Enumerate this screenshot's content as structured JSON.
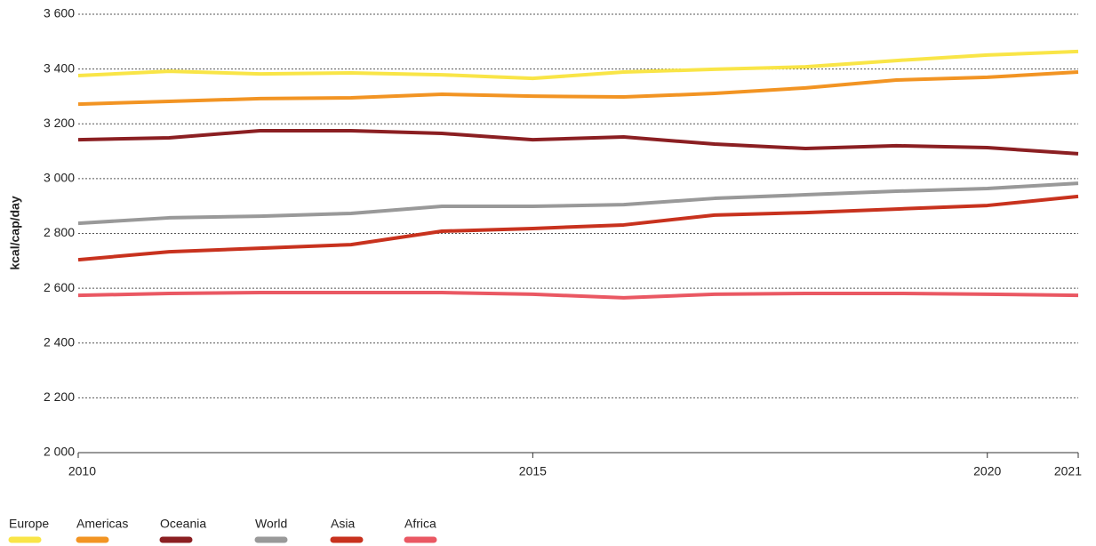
{
  "chart_data": {
    "type": "line",
    "y_label": "kcal/cap/day",
    "x": [
      2010,
      2011,
      2012,
      2013,
      2014,
      2015,
      2016,
      2017,
      2018,
      2019,
      2020,
      2021
    ],
    "xlim": [
      2010,
      2021
    ],
    "xticks": [
      2010,
      2015,
      2020,
      2021
    ],
    "ylim": [
      2000,
      3600
    ],
    "yticks": [
      {
        "value": 2000,
        "label": "2 000"
      },
      {
        "value": 2200,
        "label": "2 200"
      },
      {
        "value": 2400,
        "label": "2 400"
      },
      {
        "value": 2600,
        "label": "2 600"
      },
      {
        "value": 2800,
        "label": "2 800"
      },
      {
        "value": 3000,
        "label": "3 000"
      },
      {
        "value": 3200,
        "label": "3 200"
      },
      {
        "value": 3400,
        "label": "3 400"
      },
      {
        "value": 3600,
        "label": "3 600"
      }
    ],
    "grid": true,
    "legend": "bottom-left",
    "series": [
      {
        "name": "Europe",
        "color": "#f9e547",
        "values": [
          3376,
          3392,
          3382,
          3386,
          3379,
          3366,
          3389,
          3399,
          3408,
          3431,
          3451,
          3464
        ]
      },
      {
        "name": "Americas",
        "color": "#f29423",
        "values": [
          3272,
          3282,
          3292,
          3295,
          3308,
          3301,
          3298,
          3311,
          3331,
          3360,
          3370,
          3389
        ]
      },
      {
        "name": "Oceania",
        "color": "#8b1f22",
        "values": [
          3142,
          3149,
          3175,
          3175,
          3165,
          3142,
          3152,
          3126,
          3110,
          3120,
          3113,
          3091
        ]
      },
      {
        "name": "World",
        "color": "#999999",
        "values": [
          2837,
          2857,
          2863,
          2873,
          2899,
          2899,
          2905,
          2928,
          2941,
          2954,
          2964,
          2983
        ]
      },
      {
        "name": "Asia",
        "color": "#c8321e",
        "values": [
          2704,
          2733,
          2746,
          2759,
          2808,
          2818,
          2831,
          2867,
          2876,
          2889,
          2902,
          2935
        ]
      },
      {
        "name": "Africa",
        "color": "#ea5863",
        "values": [
          2574,
          2581,
          2584,
          2584,
          2584,
          2578,
          2565,
          2578,
          2581,
          2581,
          2578,
          2574
        ]
      }
    ]
  }
}
